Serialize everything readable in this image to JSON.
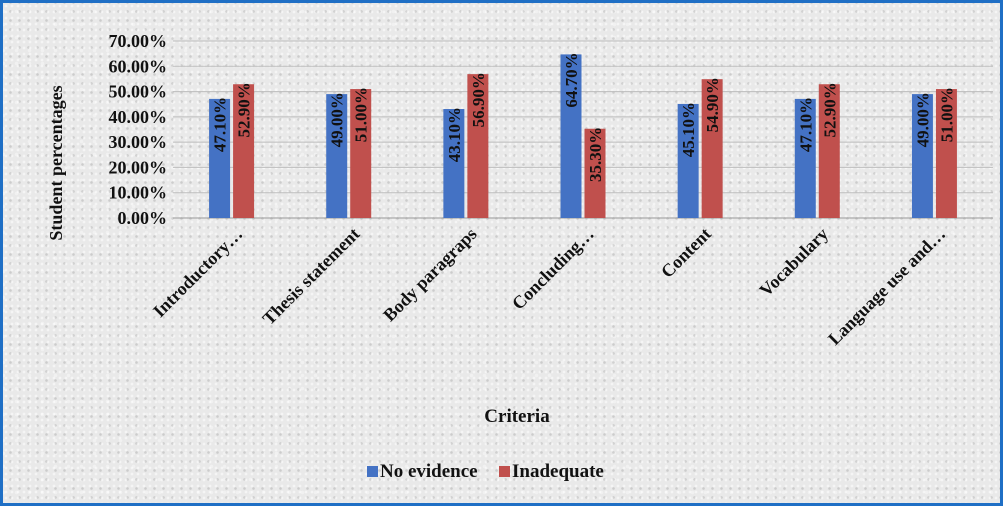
{
  "chart_data": {
    "type": "bar",
    "title": "",
    "xlabel": "Criteria",
    "ylabel": "Student percentages",
    "ylim": [
      0,
      70
    ],
    "yticks": [
      "0.00%",
      "10.00%",
      "20.00%",
      "30.00%",
      "40.00%",
      "50.00%",
      "60.00%",
      "70.00%"
    ],
    "categories": [
      "Introductory…",
      "Thesis statement",
      "Body paragraps",
      "Concluding…",
      "Content",
      "Vocabulary",
      "Language use and…"
    ],
    "series": [
      {
        "name": "No evidence",
        "color": "#4472c4",
        "values": [
          47.1,
          49.0,
          43.1,
          64.7,
          45.1,
          47.1,
          49.0
        ],
        "labels": [
          "47.10%",
          "49.00%",
          "43.10%",
          "64.70%",
          "45.10%",
          "47.10%",
          "49.00%"
        ]
      },
      {
        "name": "Inadequate",
        "color": "#c0504d",
        "values": [
          52.9,
          51.0,
          56.9,
          35.3,
          54.9,
          52.9,
          51.0
        ],
        "labels": [
          "52.90%",
          "51.00%",
          "56.90%",
          "35.30%",
          "54.90%",
          "52.90%",
          "51.00%"
        ]
      }
    ],
    "grid": true,
    "legend": "bottom-center"
  }
}
